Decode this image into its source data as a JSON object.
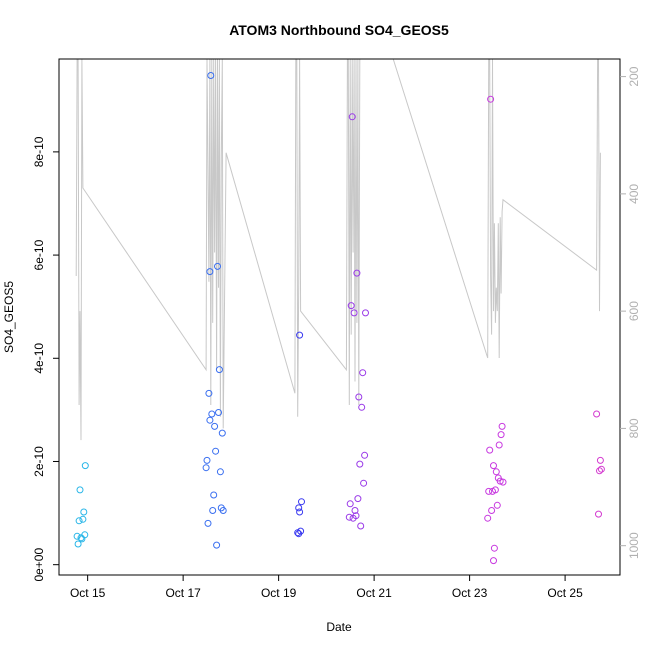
{
  "chart_data": {
    "type": "scatter",
    "title": "ATOM3 Northbound SO4_GEOS5",
    "xlabel": "Date",
    "ylabel": "SO4_GEOS5",
    "xlim": [
      14.4,
      26.15
    ],
    "ylim": [
      -2e-11,
      9.8e-10
    ],
    "x_ticks": [
      {
        "value": 15,
        "label": "Oct 15"
      },
      {
        "value": 17,
        "label": "Oct 17"
      },
      {
        "value": 19,
        "label": "Oct 19"
      },
      {
        "value": 21,
        "label": "Oct 21"
      },
      {
        "value": 23,
        "label": "Oct 23"
      },
      {
        "value": 25,
        "label": "Oct 25"
      }
    ],
    "y_ticks": [
      {
        "value": 0,
        "label": "0e+00"
      },
      {
        "value": 2e-10,
        "label": "2e-10"
      },
      {
        "value": 4e-10,
        "label": "4e-10"
      },
      {
        "value": 6e-10,
        "label": "6e-10"
      },
      {
        "value": 8e-10,
        "label": "8e-10"
      }
    ],
    "y2_axis": {
      "inverted": true,
      "ylim": [
        1050,
        170
      ],
      "ticks": [
        {
          "value": 200,
          "label": "200"
        },
        {
          "value": 400,
          "label": "400"
        },
        {
          "value": 600,
          "label": "600"
        },
        {
          "value": 800,
          "label": "800"
        },
        {
          "value": 1000,
          "label": "1000"
        }
      ],
      "line_color": "#c8c8c8"
    },
    "grid": false,
    "series": [
      {
        "color": "#29b6e8",
        "points": [
          [
            14.78,
            5.5e-11
          ],
          [
            14.8,
            4e-11
          ],
          [
            14.82,
            8.5e-11
          ],
          [
            14.84,
            1.45e-10
          ],
          [
            14.86,
            5.2e-11
          ],
          [
            14.88,
            5e-11
          ],
          [
            14.9,
            8.8e-11
          ],
          [
            14.92,
            1.02e-10
          ],
          [
            14.94,
            5.8e-11
          ],
          [
            14.95,
            1.92e-10
          ]
        ]
      },
      {
        "color": "#3a6ff0",
        "points": [
          [
            17.48,
            1.88e-10
          ],
          [
            17.5,
            2.02e-10
          ],
          [
            17.52,
            8e-11
          ],
          [
            17.54,
            3.32e-10
          ],
          [
            17.56,
            5.68e-10
          ],
          [
            17.58,
            9.48e-10
          ],
          [
            17.6,
            2.92e-10
          ],
          [
            17.62,
            1.05e-10
          ],
          [
            17.64,
            1.35e-10
          ],
          [
            17.66,
            2.68e-10
          ],
          [
            17.68,
            2.2e-10
          ],
          [
            17.7,
            3.8e-11
          ],
          [
            17.72,
            5.78e-10
          ],
          [
            17.74,
            2.95e-10
          ],
          [
            17.76,
            3.78e-10
          ],
          [
            17.78,
            1.8e-10
          ],
          [
            17.8,
            1.1e-10
          ],
          [
            17.82,
            2.55e-10
          ],
          [
            17.84,
            1.05e-10
          ],
          [
            17.56,
            2.8e-10
          ]
        ]
      },
      {
        "color": "#3a3af0",
        "points": [
          [
            19.4,
            6.2e-11
          ],
          [
            19.42,
            1.1e-10
          ],
          [
            19.44,
            1.02e-10
          ],
          [
            19.46,
            6.5e-11
          ],
          [
            19.48,
            1.22e-10
          ],
          [
            19.44,
            4.45e-10
          ],
          [
            19.42,
            6e-11
          ]
        ]
      },
      {
        "color": "#9a3ae8",
        "points": [
          [
            20.48,
            9.2e-11
          ],
          [
            20.5,
            1.18e-10
          ],
          [
            20.52,
            5.02e-10
          ],
          [
            20.54,
            8.68e-10
          ],
          [
            20.56,
            9e-11
          ],
          [
            20.58,
            4.88e-10
          ],
          [
            20.6,
            1.05e-10
          ],
          [
            20.62,
            9.5e-11
          ],
          [
            20.64,
            5.65e-10
          ],
          [
            20.66,
            1.28e-10
          ],
          [
            20.68,
            3.25e-10
          ],
          [
            20.7,
            1.95e-10
          ],
          [
            20.72,
            7.5e-11
          ],
          [
            20.74,
            3.05e-10
          ],
          [
            20.76,
            3.72e-10
          ],
          [
            20.78,
            1.58e-10
          ],
          [
            20.8,
            2.12e-10
          ],
          [
            20.82,
            4.88e-10
          ]
        ]
      },
      {
        "color": "#c83ae0",
        "points": [
          [
            23.38,
            9e-11
          ],
          [
            23.4,
            1.42e-10
          ],
          [
            23.42,
            2.22e-10
          ],
          [
            23.44,
            9.02e-10
          ],
          [
            23.46,
            1.05e-10
          ],
          [
            23.48,
            1.42e-10
          ],
          [
            23.5,
            1.92e-10
          ],
          [
            23.52,
            3.2e-11
          ],
          [
            23.54,
            1.45e-10
          ],
          [
            23.56,
            1.8e-10
          ],
          [
            23.58,
            1.15e-10
          ],
          [
            23.6,
            1.68e-10
          ],
          [
            23.62,
            2.32e-10
          ],
          [
            23.64,
            1.62e-10
          ],
          [
            23.66,
            2.52e-10
          ],
          [
            23.68,
            2.68e-10
          ],
          [
            23.7,
            1.6e-10
          ],
          [
            23.5,
            8e-12
          ]
        ]
      },
      {
        "color": "#d43ad0",
        "points": [
          [
            25.66,
            2.92e-10
          ],
          [
            25.7,
            9.8e-11
          ],
          [
            25.72,
            1.82e-10
          ],
          [
            25.74,
            2.02e-10
          ],
          [
            25.76,
            1.85e-10
          ]
        ]
      }
    ],
    "pressure_line": [
      [
        14.76,
        540
      ],
      [
        14.78,
        170
      ],
      [
        14.8,
        170
      ],
      [
        14.82,
        760
      ],
      [
        14.84,
        600
      ],
      [
        14.86,
        820
      ],
      [
        14.88,
        170
      ],
      [
        14.9,
        390
      ],
      [
        17.48,
        700
      ],
      [
        17.5,
        170
      ],
      [
        17.52,
        360
      ],
      [
        17.54,
        550
      ],
      [
        17.56,
        170
      ],
      [
        17.58,
        760
      ],
      [
        17.6,
        170
      ],
      [
        17.62,
        620
      ],
      [
        17.64,
        170
      ],
      [
        17.66,
        500
      ],
      [
        17.68,
        170
      ],
      [
        17.7,
        700
      ],
      [
        17.72,
        170
      ],
      [
        17.74,
        560
      ],
      [
        17.76,
        170
      ],
      [
        17.78,
        780
      ],
      [
        17.8,
        340
      ],
      [
        17.82,
        170
      ],
      [
        17.84,
        800
      ],
      [
        17.9,
        330
      ],
      [
        19.34,
        740
      ],
      [
        19.36,
        170
      ],
      [
        19.38,
        170
      ],
      [
        19.4,
        780
      ],
      [
        19.42,
        560
      ],
      [
        19.44,
        170
      ],
      [
        19.46,
        600
      ],
      [
        20.42,
        700
      ],
      [
        20.44,
        170
      ],
      [
        20.46,
        170
      ],
      [
        20.48,
        760
      ],
      [
        20.5,
        170
      ],
      [
        20.52,
        640
      ],
      [
        20.54,
        170
      ],
      [
        20.56,
        500
      ],
      [
        20.58,
        170
      ],
      [
        20.6,
        720
      ],
      [
        20.62,
        170
      ],
      [
        20.64,
        620
      ],
      [
        20.66,
        170
      ],
      [
        20.68,
        760
      ],
      [
        20.7,
        170
      ],
      [
        21.4,
        170
      ],
      [
        23.38,
        680
      ],
      [
        23.4,
        170
      ],
      [
        23.42,
        170
      ],
      [
        23.44,
        540
      ],
      [
        23.46,
        640
      ],
      [
        23.48,
        170
      ],
      [
        23.5,
        600
      ],
      [
        23.52,
        450
      ],
      [
        23.54,
        620
      ],
      [
        23.56,
        560
      ],
      [
        23.58,
        600
      ],
      [
        23.6,
        450
      ],
      [
        23.62,
        680
      ],
      [
        23.64,
        440
      ],
      [
        23.66,
        570
      ],
      [
        23.68,
        430
      ],
      [
        23.7,
        410
      ],
      [
        25.66,
        530
      ],
      [
        25.68,
        170
      ],
      [
        25.7,
        170
      ],
      [
        25.72,
        600
      ],
      [
        25.74,
        330
      ]
    ]
  }
}
